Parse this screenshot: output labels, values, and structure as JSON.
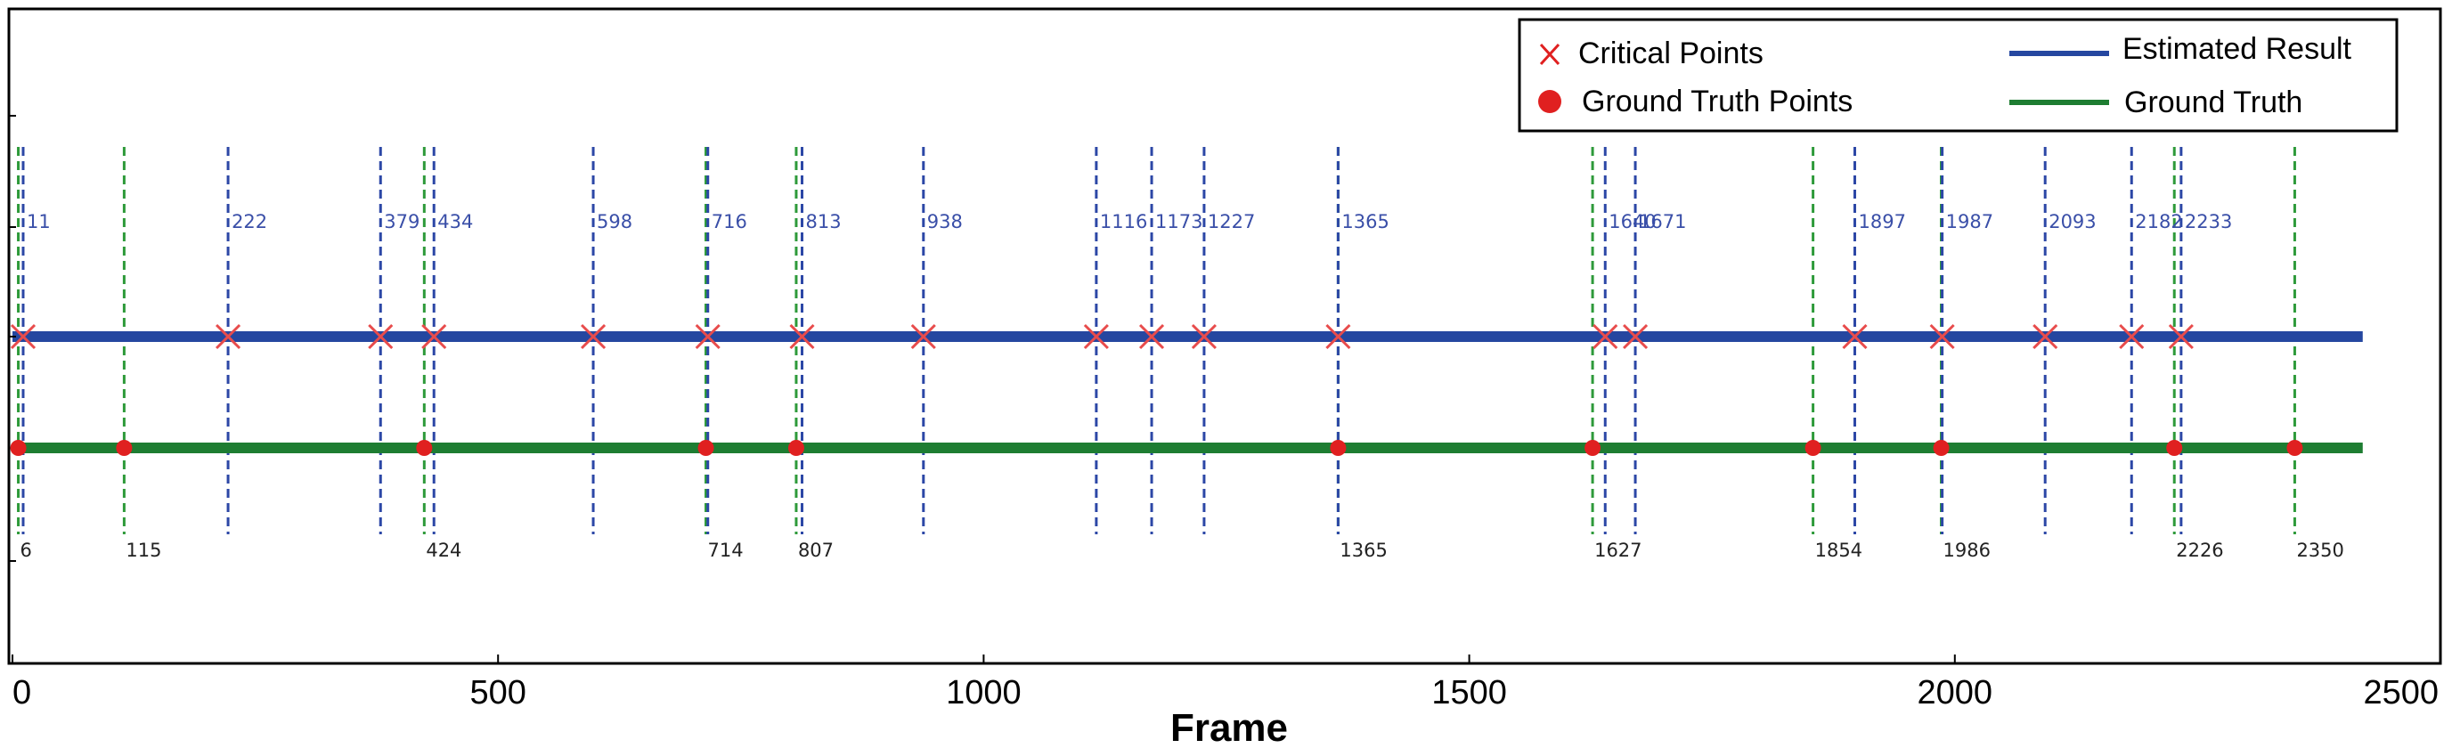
{
  "chart_data": {
    "type": "line",
    "xlabel": "Frame",
    "xlim": [
      0,
      2500
    ],
    "xticks": [
      "0",
      "500",
      "1000",
      "1500",
      "2000",
      "2500"
    ],
    "series": [
      {
        "name": "Estimated Result",
        "color": "#2547a0",
        "y_level": "upper",
        "points_label": "Critical Points",
        "x": [
          11,
          222,
          379,
          434,
          598,
          716,
          813,
          938,
          1116,
          1173,
          1227,
          1365,
          1640,
          1671,
          1897,
          1987,
          2093,
          2182,
          2233
        ],
        "labels": [
          "11",
          "222",
          "379",
          "434",
          "598",
          "716",
          "813",
          "938",
          "1116",
          "1173",
          "1227",
          "1365",
          "1640",
          "1671",
          "1897",
          "1987",
          "2093",
          "2182",
          "2233"
        ]
      },
      {
        "name": "Ground Truth",
        "color": "#1e7d32",
        "y_level": "lower",
        "points_label": "Ground Truth Points",
        "x": [
          6,
          115,
          424,
          714,
          807,
          1365,
          1627,
          1854,
          1986,
          2226,
          2350
        ],
        "labels": [
          "6",
          "115",
          "424",
          "714",
          "807",
          "1365",
          "1627",
          "1854",
          "1986",
          "2226",
          "2350"
        ]
      }
    ],
    "line_extent": [
      0,
      2420
    ],
    "legend": {
      "position": "top-right",
      "entries": [
        "Critical Points",
        "Ground Truth Points",
        "Estimated Result",
        "Ground Truth"
      ]
    },
    "colors": {
      "estimated": "#2547a0",
      "ground_truth": "#1e7d32",
      "critical_marker": "#e84c4c",
      "gt_marker": "#e02020",
      "gt_vline": "#2e9a3a",
      "est_vline": "#2c47a6"
    },
    "grid": false
  }
}
